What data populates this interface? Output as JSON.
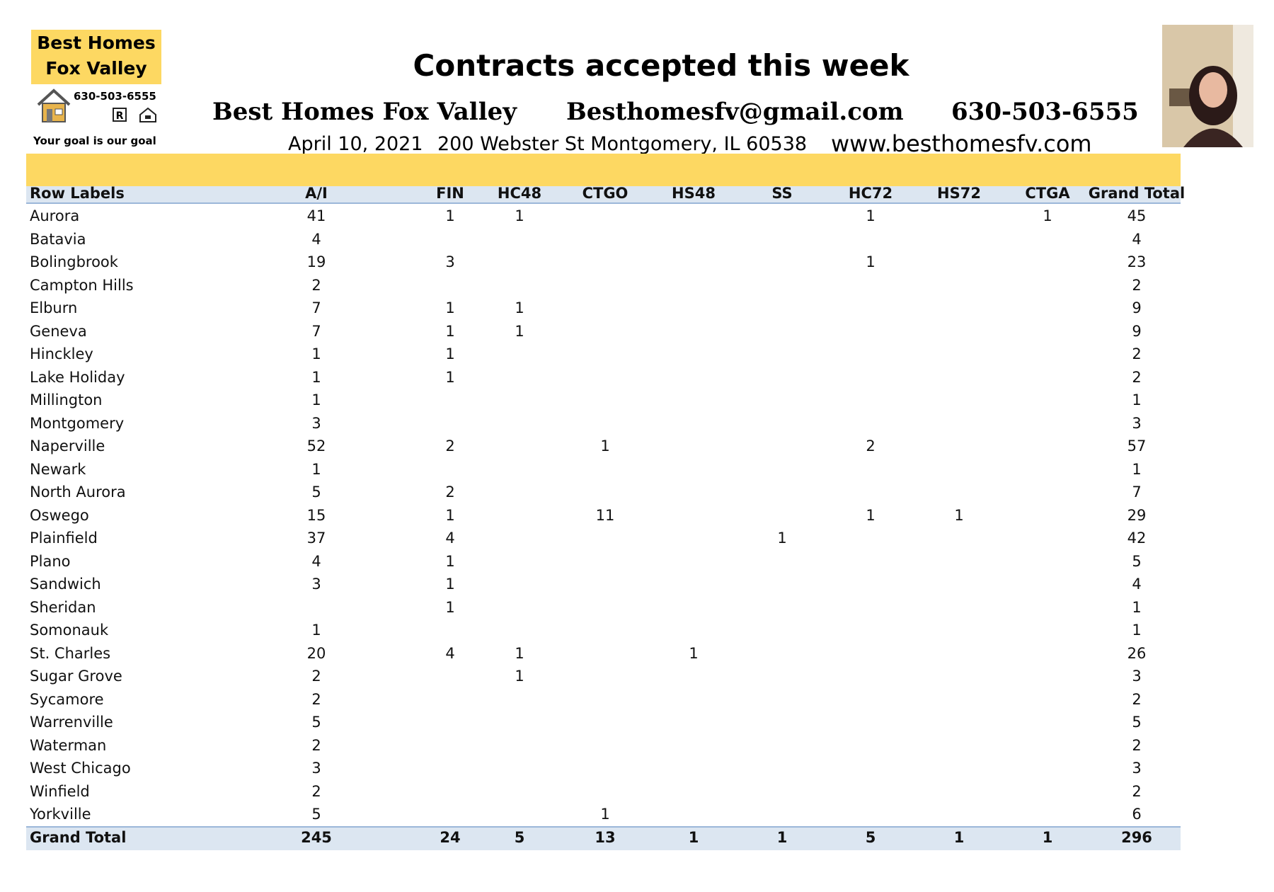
{
  "logo": {
    "line1": "Best Homes",
    "line2": "Fox Valley",
    "phone": "630-503-6555",
    "tagline": "Your goal is our goal"
  },
  "header": {
    "title": "Contracts accepted this week",
    "company": "Best Homes Fox Valley",
    "email": "Besthomesfv@gmail.com",
    "phone": "630-503-6555",
    "date": "April 10, 2021",
    "address": "200 Webster St Montgomery, IL 60538",
    "website": "www.besthomesfv.com"
  },
  "table": {
    "columns": [
      "Row Labels",
      "A/I",
      "FIN",
      "HC48",
      "CTGO",
      "HS48",
      "SS",
      "HC72",
      "HS72",
      "CTGA",
      "Grand Total"
    ],
    "rows": [
      [
        "Aurora",
        41,
        1,
        1,
        null,
        null,
        null,
        1,
        null,
        1,
        45
      ],
      [
        "Batavia",
        4,
        null,
        null,
        null,
        null,
        null,
        null,
        null,
        null,
        4
      ],
      [
        "Bolingbrook",
        19,
        3,
        null,
        null,
        null,
        null,
        1,
        null,
        null,
        23
      ],
      [
        "Campton Hills",
        2,
        null,
        null,
        null,
        null,
        null,
        null,
        null,
        null,
        2
      ],
      [
        "Elburn",
        7,
        1,
        1,
        null,
        null,
        null,
        null,
        null,
        null,
        9
      ],
      [
        "Geneva",
        7,
        1,
        1,
        null,
        null,
        null,
        null,
        null,
        null,
        9
      ],
      [
        "Hinckley",
        1,
        1,
        null,
        null,
        null,
        null,
        null,
        null,
        null,
        2
      ],
      [
        "Lake Holiday",
        1,
        1,
        null,
        null,
        null,
        null,
        null,
        null,
        null,
        2
      ],
      [
        "Millington",
        1,
        null,
        null,
        null,
        null,
        null,
        null,
        null,
        null,
        1
      ],
      [
        "Montgomery",
        3,
        null,
        null,
        null,
        null,
        null,
        null,
        null,
        null,
        3
      ],
      [
        "Naperville",
        52,
        2,
        null,
        1,
        null,
        null,
        2,
        null,
        null,
        57
      ],
      [
        "Newark",
        1,
        null,
        null,
        null,
        null,
        null,
        null,
        null,
        null,
        1
      ],
      [
        "North Aurora",
        5,
        2,
        null,
        null,
        null,
        null,
        null,
        null,
        null,
        7
      ],
      [
        "Oswego",
        15,
        1,
        null,
        11,
        null,
        null,
        1,
        1,
        null,
        29
      ],
      [
        "Plainfield",
        37,
        4,
        null,
        null,
        null,
        1,
        null,
        null,
        null,
        42
      ],
      [
        "Plano",
        4,
        1,
        null,
        null,
        null,
        null,
        null,
        null,
        null,
        5
      ],
      [
        "Sandwich",
        3,
        1,
        null,
        null,
        null,
        null,
        null,
        null,
        null,
        4
      ],
      [
        "Sheridan",
        null,
        1,
        null,
        null,
        null,
        null,
        null,
        null,
        null,
        1
      ],
      [
        "Somonauk",
        1,
        null,
        null,
        null,
        null,
        null,
        null,
        null,
        null,
        1
      ],
      [
        "St. Charles",
        20,
        4,
        1,
        null,
        1,
        null,
        null,
        null,
        null,
        26
      ],
      [
        "Sugar Grove",
        2,
        null,
        1,
        null,
        null,
        null,
        null,
        null,
        null,
        3
      ],
      [
        "Sycamore",
        2,
        null,
        null,
        null,
        null,
        null,
        null,
        null,
        null,
        2
      ],
      [
        "Warrenville",
        5,
        null,
        null,
        null,
        null,
        null,
        null,
        null,
        null,
        5
      ],
      [
        "Waterman",
        2,
        null,
        null,
        null,
        null,
        null,
        null,
        null,
        null,
        2
      ],
      [
        "West Chicago",
        3,
        null,
        null,
        null,
        null,
        null,
        null,
        null,
        null,
        3
      ],
      [
        "Winfield",
        2,
        null,
        null,
        null,
        null,
        null,
        null,
        null,
        null,
        2
      ],
      [
        "Yorkville",
        5,
        null,
        null,
        1,
        null,
        null,
        null,
        null,
        null,
        6
      ]
    ],
    "total": [
      "Grand Total",
      245,
      24,
      5,
      13,
      1,
      1,
      5,
      1,
      1,
      296
    ]
  }
}
